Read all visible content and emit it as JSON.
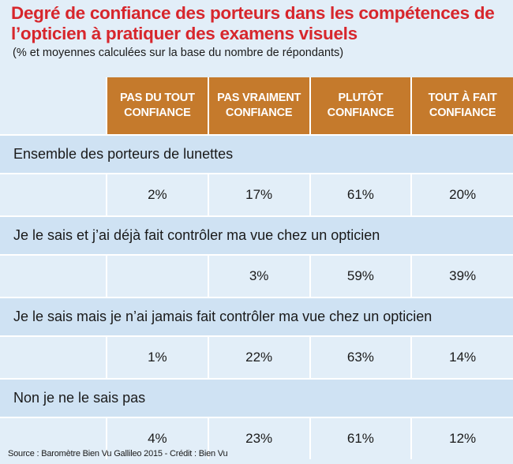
{
  "chart_data": {
    "type": "table",
    "title": "Degré de confiance des porteurs dans les compétences de l’opticien à pratiquer des examens visuels",
    "subtitle": "(% et moyennes calculées sur la base du nombre de répondants)",
    "columns": [
      "PAS DU TOUT CONFIANCE",
      "PAS VRAIMENT CONFIANCE",
      "PLUTÔT CONFIANCE",
      "TOUT À FAIT CONFIANCE"
    ],
    "rows": [
      {
        "label": "Ensemble des porteurs de lunettes",
        "values": [
          "2%",
          "17%",
          "61%",
          "20%"
        ]
      },
      {
        "label": "Je le sais et j’ai déjà fait contrôler ma vue chez un opticien",
        "values": [
          "",
          "3%",
          "59%",
          "39%"
        ]
      },
      {
        "label": "Je le sais mais je n’ai jamais fait contrôler ma vue chez un opticien",
        "values": [
          "1%",
          "22%",
          "63%",
          "14%"
        ]
      },
      {
        "label": "Non je ne le sais pas",
        "values": [
          "4%",
          "23%",
          "61%",
          "12%"
        ]
      }
    ],
    "source": "Source : Baromètre Bien Vu Gallileo 2015 - Crédit : Bien Vu"
  },
  "colors": {
    "title": "#d7262c",
    "header_bg": "#c57a2c",
    "label_row_bg": "#cfe2f3",
    "value_row_bg": "#e2eef8"
  }
}
